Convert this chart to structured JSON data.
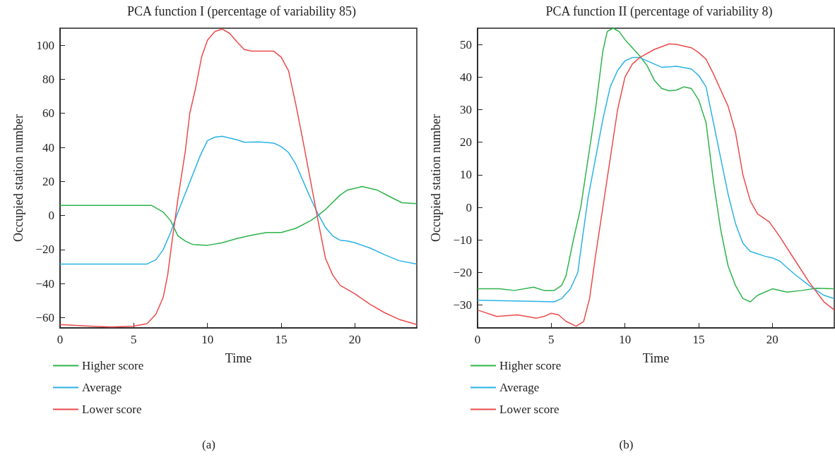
{
  "chart_data": [
    {
      "type": "line",
      "title": "PCA function I (percentage of variability 85)",
      "xlabel": "Time",
      "ylabel": "Occupied station number",
      "annotations": [
        "(a)"
      ],
      "legend": "bottom",
      "grid": false,
      "marker": "none",
      "line_style": "solid",
      "xlim": [
        0,
        24.2
      ],
      "xticks": [
        0,
        5,
        10,
        15,
        20
      ],
      "ylim": [
        -66,
        110
      ],
      "yticks": [
        {
          "value": -60,
          "label": "−60"
        },
        {
          "value": -40,
          "label": "−40"
        },
        {
          "value": -20,
          "label": "−20"
        },
        0,
        20,
        40,
        60,
        80,
        100
      ],
      "series": [
        {
          "name": "Higher score",
          "color": "#2db34a",
          "x": [
            0,
            6.2,
            7,
            7.5,
            8,
            8.5,
            9,
            10,
            11,
            12,
            13,
            14,
            15,
            16,
            17,
            17.5,
            18,
            19,
            19.5,
            20.5,
            21.5,
            22.5,
            23.2,
            24.2
          ],
          "values": [
            6,
            6,
            2,
            -3,
            -12,
            -15,
            -17,
            -17.5,
            -16,
            -13.5,
            -11.5,
            -10,
            -10,
            -7.5,
            -3,
            0,
            3.5,
            12,
            15,
            17,
            15,
            10.5,
            7.5,
            7
          ]
        },
        {
          "name": "Average",
          "color": "#29b2e3",
          "x": [
            0,
            5.9,
            6.5,
            7,
            7.5,
            8,
            8.5,
            9,
            9.5,
            10,
            10.5,
            11,
            12,
            12.5,
            13.5,
            14.5,
            15,
            15.5,
            16,
            16.5,
            17,
            17.5,
            18,
            18.5,
            19,
            19.5,
            20,
            21,
            22,
            23,
            24.2
          ],
          "values": [
            -28.5,
            -28.5,
            -26,
            -20,
            -10,
            2,
            13,
            24,
            35,
            44,
            46,
            46.5,
            44.5,
            43,
            43.2,
            42.5,
            40.5,
            37,
            30,
            20,
            10,
            1,
            -7,
            -12,
            -14.5,
            -15,
            -16,
            -19,
            -23,
            -26.5,
            -28.5
          ]
        },
        {
          "name": "Lower score",
          "color": "#ec4a4a",
          "x": [
            0,
            2,
            3.5,
            5,
            5.9,
            6.5,
            7,
            7.3,
            7.6,
            8,
            8.5,
            8.8,
            9.2,
            9.6,
            10,
            10.5,
            11,
            11.5,
            12,
            12.5,
            13,
            14,
            14.5,
            15,
            15.5,
            16,
            16.5,
            17,
            17.5,
            18,
            18.5,
            19,
            20,
            21,
            22,
            23,
            24.2
          ],
          "values": [
            -64,
            -65,
            -65.5,
            -65,
            -63.5,
            -58,
            -48,
            -35,
            -15,
            10,
            38,
            60,
            75,
            93,
            103,
            108,
            109.5,
            107,
            102,
            97.5,
            96.5,
            96.5,
            96.5,
            93,
            85,
            65,
            43,
            20,
            -3,
            -25,
            -35,
            -41,
            -46,
            -52,
            -57,
            -61,
            -64
          ]
        }
      ]
    },
    {
      "type": "line",
      "title": "PCA function II (percentage of variability 8)",
      "xlabel": "Time",
      "ylabel": "Occupied station number",
      "annotations": [
        "(b)"
      ],
      "legend": "bottom",
      "grid": false,
      "marker": "none",
      "line_style": "solid",
      "xlim": [
        0,
        24.2
      ],
      "xticks": [
        0,
        5,
        10,
        15,
        20
      ],
      "ylim": [
        -37,
        55
      ],
      "yticks": [
        {
          "value": -30,
          "label": "−30"
        },
        {
          "value": -20,
          "label": "−20"
        },
        {
          "value": -10,
          "label": "−10"
        },
        0,
        10,
        20,
        30,
        40,
        50
      ],
      "series": [
        {
          "name": "Higher score",
          "color": "#2db34a",
          "x": [
            0,
            1.5,
            2.5,
            3.8,
            4.5,
            5.2,
            5.7,
            6,
            6.5,
            7,
            7.5,
            8,
            8.5,
            8.8,
            9.2,
            9.6,
            10,
            11,
            11.5,
            12,
            12.5,
            13,
            13.5,
            14,
            14.5,
            15,
            15.5,
            16,
            16.5,
            17,
            17.5,
            18,
            18.5,
            19,
            20,
            21,
            22,
            23,
            24.2
          ],
          "values": [
            -25,
            -25,
            -25.5,
            -24.5,
            -25.5,
            -25.5,
            -24,
            -21,
            -10,
            0,
            15,
            30,
            48,
            54,
            55,
            54,
            51.5,
            46.5,
            43.5,
            39,
            36.5,
            35.8,
            36,
            37,
            36.5,
            33,
            26,
            8,
            -7,
            -18,
            -24,
            -28,
            -29,
            -27,
            -25,
            -26,
            -25.5,
            -24.8,
            -25
          ]
        },
        {
          "name": "Average",
          "color": "#29b2e3",
          "x": [
            0,
            5.2,
            5.7,
            6.3,
            6.8,
            7.1,
            7.5,
            8,
            8.5,
            9,
            9.5,
            10,
            10.5,
            11,
            12,
            12.5,
            13.5,
            14.5,
            15,
            15.5,
            16,
            16.5,
            17,
            17.5,
            18,
            18.5,
            19.5,
            20,
            20.5,
            21.5,
            22.5,
            23.5,
            24.2
          ],
          "values": [
            -28.5,
            -29,
            -28,
            -25,
            -20,
            -10,
            3,
            15,
            27,
            37,
            42,
            45,
            46,
            46,
            44,
            43,
            43.3,
            42.5,
            40.5,
            37,
            26,
            15,
            4,
            -5,
            -11,
            -13.5,
            -15,
            -15.5,
            -16.5,
            -20.5,
            -24,
            -27,
            -28
          ]
        },
        {
          "name": "Lower score",
          "color": "#ec4a4a",
          "x": [
            0,
            1.3,
            2.7,
            4,
            4.5,
            5,
            5.5,
            6,
            6.7,
            7.2,
            7.6,
            8,
            8.5,
            9,
            9.5,
            10,
            10.5,
            11,
            12,
            13,
            13.5,
            14.5,
            15,
            15.5,
            16,
            17,
            17.5,
            18,
            18.5,
            19,
            19.8,
            20.5,
            21.5,
            22.5,
            23.5,
            24.2
          ],
          "values": [
            -31.5,
            -33.5,
            -33,
            -34,
            -33.5,
            -32.5,
            -33,
            -35,
            -36.5,
            -35,
            -28,
            -15,
            0,
            15,
            30,
            40,
            44,
            46,
            48.5,
            50.2,
            50,
            49,
            47.5,
            45.5,
            41,
            31,
            23,
            10,
            2,
            -2,
            -4.5,
            -9,
            -16,
            -23,
            -29,
            -31.5
          ]
        }
      ]
    }
  ]
}
